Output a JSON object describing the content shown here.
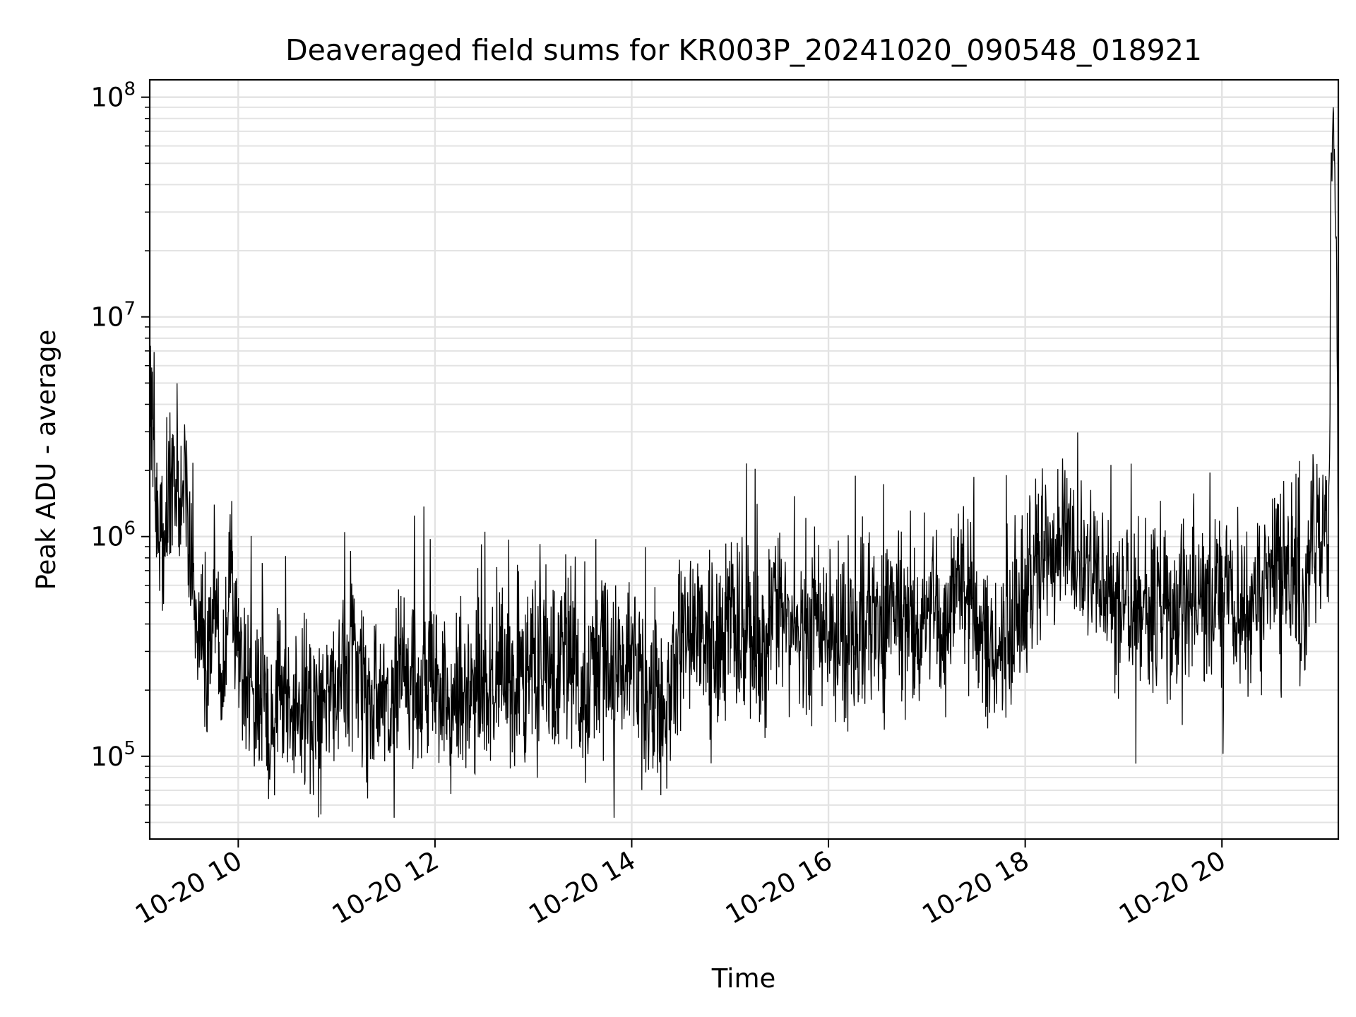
{
  "chart_data": {
    "type": "line",
    "title": "Deaveraged field sums for KR003P_20241020_090548_018921",
    "xlabel": "Time",
    "ylabel": "Peak ADU - average",
    "x_range": [
      "2024-10-20 09:06",
      "2024-10-20 21:11"
    ],
    "ylim": [
      42000,
      120000000
    ],
    "y_scale": "log",
    "grid": "major and minor",
    "x_tick_labels": [
      "10-20 10",
      "10-20 12",
      "10-20 14",
      "10-20 16",
      "10-20 18",
      "10-20 20"
    ],
    "x_tick_values": [
      "2024-10-20 10:00",
      "2024-10-20 12:00",
      "2024-10-20 14:00",
      "2024-10-20 16:00",
      "2024-10-20 18:00",
      "2024-10-20 20:00"
    ],
    "y_tick_values": [
      100000,
      1000000,
      10000000,
      100000000
    ],
    "y_tick_base": "10",
    "y_tick_exponents": [
      "5",
      "6",
      "7",
      "8"
    ],
    "line_color": "#000000",
    "series": [
      {
        "x": [
          "2024-10-20 09:06",
          "2024-10-20 09:09",
          "2024-10-20 09:12",
          "2024-10-20 09:15",
          "2024-10-20 09:18",
          "2024-10-20 09:21",
          "2024-10-20 09:24",
          "2024-10-20 09:27",
          "2024-10-20 09:30",
          "2024-10-20 09:33",
          "2024-10-20 09:36",
          "2024-10-20 09:40",
          "2024-10-20 09:45",
          "2024-10-20 09:50",
          "2024-10-20 09:55",
          "2024-10-20 10:00",
          "2024-10-20 10:05",
          "2024-10-20 10:10",
          "2024-10-20 10:15",
          "2024-10-20 10:20",
          "2024-10-20 10:25",
          "2024-10-20 10:30",
          "2024-10-20 10:40",
          "2024-10-20 10:50",
          "2024-10-20 11:00",
          "2024-10-20 11:10",
          "2024-10-20 11:20",
          "2024-10-20 11:30",
          "2024-10-20 11:40",
          "2024-10-20 11:50",
          "2024-10-20 12:00",
          "2024-10-20 12:10",
          "2024-10-20 12:20",
          "2024-10-20 12:30",
          "2024-10-20 12:40",
          "2024-10-20 12:50",
          "2024-10-20 13:00",
          "2024-10-20 13:10",
          "2024-10-20 13:20",
          "2024-10-20 13:30",
          "2024-10-20 13:40",
          "2024-10-20 13:50",
          "2024-10-20 14:00",
          "2024-10-20 14:10",
          "2024-10-20 14:20",
          "2024-10-20 14:30",
          "2024-10-20 14:40",
          "2024-10-20 14:50",
          "2024-10-20 15:00",
          "2024-10-20 15:10",
          "2024-10-20 15:20",
          "2024-10-20 15:30",
          "2024-10-20 15:40",
          "2024-10-20 15:50",
          "2024-10-20 16:00",
          "2024-10-20 16:10",
          "2024-10-20 16:20",
          "2024-10-20 16:30",
          "2024-10-20 16:40",
          "2024-10-20 16:50",
          "2024-10-20 17:00",
          "2024-10-20 17:10",
          "2024-10-20 17:20",
          "2024-10-20 17:30",
          "2024-10-20 17:40",
          "2024-10-20 17:50",
          "2024-10-20 18:00",
          "2024-10-20 18:10",
          "2024-10-20 18:20",
          "2024-10-20 18:30",
          "2024-10-20 18:40",
          "2024-10-20 18:50",
          "2024-10-20 19:00",
          "2024-10-20 19:10",
          "2024-10-20 19:20",
          "2024-10-20 19:30",
          "2024-10-20 19:40",
          "2024-10-20 19:50",
          "2024-10-20 20:00",
          "2024-10-20 20:10",
          "2024-10-20 20:20",
          "2024-10-20 20:30",
          "2024-10-20 20:40",
          "2024-10-20 20:50",
          "2024-10-20 20:55",
          "2024-10-20 21:00",
          "2024-10-20 21:03",
          "2024-10-20 21:05",
          "2024-10-20 21:07",
          "2024-10-20 21:09",
          "2024-10-20 21:11"
        ],
        "y": [
          6000000,
          1800000,
          1300000,
          800000,
          2200000,
          1500000,
          1000000,
          2300000,
          900000,
          500000,
          400000,
          220000,
          600000,
          180000,
          900000,
          300000,
          200000,
          150000,
          260000,
          120000,
          220000,
          160000,
          170000,
          140000,
          190000,
          240000,
          150000,
          200000,
          260000,
          180000,
          210000,
          160000,
          230000,
          190000,
          250000,
          160000,
          280000,
          220000,
          330000,
          190000,
          260000,
          220000,
          300000,
          180000,
          130000,
          360000,
          420000,
          300000,
          450000,
          350000,
          280000,
          480000,
          340000,
          420000,
          380000,
          300000,
          450000,
          360000,
          500000,
          420000,
          480000,
          380000,
          550000,
          450000,
          280000,
          400000,
          600000,
          900000,
          1000000,
          800000,
          700000,
          550000,
          480000,
          420000,
          500000,
          380000,
          600000,
          450000,
          550000,
          400000,
          500000,
          650000,
          800000,
          400000,
          1200000,
          900000,
          1400000,
          1000000,
          85000000,
          60000000,
          1500000
        ]
      }
    ]
  }
}
